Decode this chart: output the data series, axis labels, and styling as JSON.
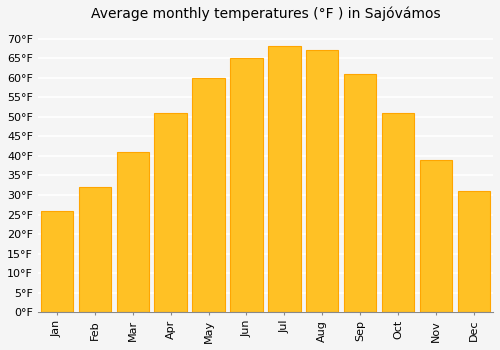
{
  "title": "Average monthly temperatures (°F ) in Sajóvámos",
  "months": [
    "Jan",
    "Feb",
    "Mar",
    "Apr",
    "May",
    "Jun",
    "Jul",
    "Aug",
    "Sep",
    "Oct",
    "Nov",
    "Dec"
  ],
  "values": [
    26,
    32,
    41,
    51,
    60,
    65,
    68,
    67,
    61,
    51,
    39,
    31
  ],
  "bar_color": "#FFC125",
  "bar_edge_color": "#FFA500",
  "background_color": "#F5F5F5",
  "plot_bg_color": "#F5F5F5",
  "ylim": [
    0,
    73
  ],
  "yticks": [
    0,
    5,
    10,
    15,
    20,
    25,
    30,
    35,
    40,
    45,
    50,
    55,
    60,
    65,
    70
  ],
  "title_fontsize": 10,
  "tick_fontsize": 8,
  "grid_color": "#FFFFFF",
  "ylabel_suffix": "°F"
}
